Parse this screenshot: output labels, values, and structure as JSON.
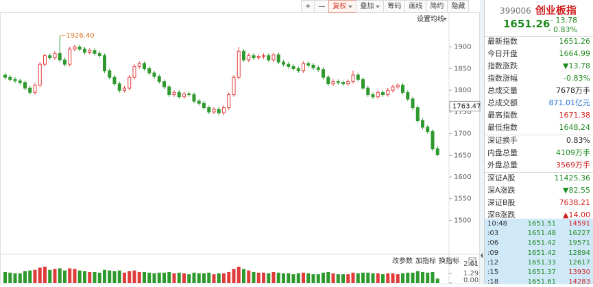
{
  "toolbar": {
    "buttons": [
      "+",
      "—",
      "复权",
      "叠加",
      "筹码",
      "画线",
      "简约",
      "隐藏"
    ],
    "dropdowns": [
      false,
      false,
      true,
      true,
      false,
      false,
      false,
      false
    ],
    "active": 2
  },
  "chart_data": {
    "type": "candlestick",
    "ohlc": [
      [
        1835,
        1840,
        1825,
        1830
      ],
      [
        1830,
        1835,
        1820,
        1825
      ],
      [
        1825,
        1830,
        1817,
        1822
      ],
      [
        1822,
        1827,
        1813,
        1818
      ],
      [
        1818,
        1823,
        1800,
        1805
      ],
      [
        1805,
        1810,
        1790,
        1795
      ],
      [
        1795,
        1817,
        1790,
        1812
      ],
      [
        1812,
        1865,
        1807,
        1860
      ],
      [
        1860,
        1885,
        1855,
        1880
      ],
      [
        1880,
        1885,
        1870,
        1875
      ],
      [
        1875,
        1890,
        1870,
        1885
      ],
      [
        1885,
        1926.4,
        1865,
        1870
      ],
      [
        1870,
        1875,
        1855,
        1860
      ],
      [
        1860,
        1900,
        1855,
        1895
      ],
      [
        1895,
        1905,
        1890,
        1900
      ],
      [
        1900,
        1905,
        1890,
        1895
      ],
      [
        1895,
        1900,
        1883,
        1888
      ],
      [
        1888,
        1897,
        1883,
        1892
      ],
      [
        1892,
        1897,
        1880,
        1885
      ],
      [
        1885,
        1890,
        1875,
        1880
      ],
      [
        1880,
        1885,
        1840,
        1845
      ],
      [
        1845,
        1850,
        1825,
        1830
      ],
      [
        1830,
        1835,
        1810,
        1815
      ],
      [
        1815,
        1820,
        1795,
        1800
      ],
      [
        1800,
        1810,
        1795,
        1805
      ],
      [
        1805,
        1835,
        1800,
        1830
      ],
      [
        1830,
        1860,
        1825,
        1855
      ],
      [
        1855,
        1867,
        1850,
        1862
      ],
      [
        1862,
        1867,
        1845,
        1850
      ],
      [
        1850,
        1855,
        1835,
        1840
      ],
      [
        1840,
        1845,
        1827,
        1832
      ],
      [
        1832,
        1837,
        1815,
        1820
      ],
      [
        1820,
        1825,
        1803,
        1808
      ],
      [
        1808,
        1813,
        1785,
        1790
      ],
      [
        1790,
        1800,
        1785,
        1795
      ],
      [
        1795,
        1800,
        1780,
        1785
      ],
      [
        1785,
        1797,
        1780,
        1792
      ],
      [
        1792,
        1797,
        1785,
        1790
      ],
      [
        1790,
        1795,
        1770,
        1775
      ],
      [
        1775,
        1780,
        1765,
        1770
      ],
      [
        1770,
        1775,
        1755,
        1760
      ],
      [
        1760,
        1765,
        1745,
        1750
      ],
      [
        1750,
        1761,
        1745,
        1756
      ],
      [
        1756,
        1761,
        1743,
        1748
      ],
      [
        1748,
        1765,
        1743,
        1760
      ],
      [
        1760,
        1795,
        1755,
        1790
      ],
      [
        1790,
        1835,
        1785,
        1830
      ],
      [
        1830,
        1900,
        1825,
        1890
      ],
      [
        1890,
        1895,
        1865,
        1870
      ],
      [
        1870,
        1885,
        1865,
        1880
      ],
      [
        1880,
        1885,
        1870,
        1875
      ],
      [
        1875,
        1883,
        1870,
        1878
      ],
      [
        1878,
        1885,
        1873,
        1880
      ],
      [
        1880,
        1885,
        1865,
        1870
      ],
      [
        1870,
        1887,
        1865,
        1882
      ],
      [
        1882,
        1887,
        1860,
        1865
      ],
      [
        1865,
        1870,
        1855,
        1860
      ],
      [
        1860,
        1865,
        1850,
        1855
      ],
      [
        1855,
        1860,
        1845,
        1850
      ],
      [
        1850,
        1855,
        1840,
        1845
      ],
      [
        1845,
        1867,
        1840,
        1862
      ],
      [
        1862,
        1867,
        1853,
        1858
      ],
      [
        1858,
        1863,
        1847,
        1852
      ],
      [
        1852,
        1857,
        1843,
        1848
      ],
      [
        1848,
        1853,
        1825,
        1830
      ],
      [
        1830,
        1835,
        1810,
        1815
      ],
      [
        1815,
        1825,
        1810,
        1820
      ],
      [
        1820,
        1825,
        1813,
        1818
      ],
      [
        1818,
        1823,
        1810,
        1815
      ],
      [
        1815,
        1825,
        1810,
        1820
      ],
      [
        1820,
        1845,
        1815,
        1835
      ],
      [
        1835,
        1840,
        1820,
        1825
      ],
      [
        1825,
        1830,
        1800,
        1805
      ],
      [
        1805,
        1810,
        1785,
        1790
      ],
      [
        1790,
        1795,
        1780,
        1785
      ],
      [
        1785,
        1800,
        1780,
        1795
      ],
      [
        1795,
        1800,
        1785,
        1790
      ],
      [
        1790,
        1805,
        1785,
        1800
      ],
      [
        1800,
        1813,
        1795,
        1808
      ],
      [
        1808,
        1817,
        1803,
        1812
      ],
      [
        1812,
        1817,
        1790,
        1795
      ],
      [
        1795,
        1800,
        1775,
        1780
      ],
      [
        1780,
        1785,
        1755,
        1760
      ],
      [
        1760,
        1765,
        1725,
        1730
      ],
      [
        1730,
        1735,
        1710,
        1715
      ],
      [
        1715,
        1720,
        1700,
        1705
      ],
      [
        1705,
        1710,
        1660,
        1665
      ],
      [
        1664.99,
        1671.38,
        1648.24,
        1651.26
      ]
    ],
    "volumes": [
      1.5,
      1.4,
      1.3,
      1.3,
      1.6,
      1.7,
      1.8,
      2.1,
      2.2,
      1.8,
      1.9,
      2.0,
      1.7,
      2.0,
      1.9,
      1.7,
      1.6,
      1.5,
      1.5,
      1.4,
      1.8,
      1.7,
      1.6,
      1.7,
      1.4,
      1.6,
      1.7,
      1.5,
      1.5,
      1.4,
      1.3,
      1.4,
      1.4,
      1.5,
      1.3,
      1.4,
      1.3,
      1.2,
      1.4,
      1.3,
      1.3,
      1.4,
      1.2,
      1.3,
      1.3,
      1.5,
      1.9,
      2.2,
      1.9,
      1.7,
      1.5,
      1.4,
      1.4,
      1.3,
      1.5,
      1.4,
      1.3,
      1.3,
      1.2,
      1.3,
      1.4,
      1.3,
      1.2,
      1.2,
      1.4,
      1.5,
      1.3,
      1.2,
      1.2,
      1.2,
      1.4,
      1.3,
      1.4,
      1.4,
      1.3,
      1.3,
      1.2,
      1.3,
      1.3,
      1.2,
      1.3,
      1.4,
      1.4,
      1.6,
      1.5,
      1.4,
      1.5,
      0.6
    ],
    "up_color": "#e03c3c",
    "down_color": "#2e9a2e",
    "ylim": [
      1425,
      1980
    ],
    "yticks": [
      1500,
      1550,
      1600,
      1650,
      1700,
      1750,
      1800,
      1850,
      1900
    ],
    "high": {
      "index": 11,
      "label": "1926.40"
    },
    "cursor": {
      "value": 1763.47,
      "label": "1763.47"
    },
    "ma_menu": "设置均线",
    "volume_ylim": [
      0,
      2.9
    ],
    "volume_yticks": [
      {
        "value": 0,
        "label": "0.00"
      },
      1.29,
      2.61
    ],
    "volume_tools": [
      "改参数",
      "加指标",
      "换指标"
    ]
  },
  "quote": {
    "code": "399006",
    "name": "创业板指",
    "price": "1651.26",
    "change": "- 13.78",
    "percent": "- 0.83%"
  },
  "stats": [
    [
      {
        "label": "最新指数",
        "value": "1651.26",
        "color": "down"
      },
      {
        "label": "今日开盘",
        "value": "1664.99",
        "color": "down"
      },
      {
        "label": "指数涨跌",
        "value": "▼13.78",
        "color": "down"
      },
      {
        "label": "指数涨幅",
        "value": "-0.83%",
        "color": "down"
      },
      {
        "label": "总成交量",
        "value": "7678万手",
        "color": "flat"
      },
      {
        "label": "总成交额",
        "value": "871.01亿元",
        "color": "blue"
      },
      {
        "label": "最高指数",
        "value": "1671.38",
        "color": "up"
      },
      {
        "label": "最低指数",
        "value": "1648.24",
        "color": "down"
      }
    ],
    [
      {
        "label": "深证换手",
        "value": "0.83%",
        "color": "flat"
      },
      {
        "label": "内盘总量",
        "value": "4109万手",
        "color": "down"
      },
      {
        "label": "外盘总量",
        "value": "3569万手",
        "color": "up"
      }
    ],
    [
      {
        "label": "深证A股",
        "value": "11425.36",
        "color": "down"
      },
      {
        "label": "深A涨跌",
        "value": "▼82.55",
        "color": "down"
      },
      {
        "label": "深证B股",
        "value": "7638.21",
        "color": "up"
      },
      {
        "label": "深B涨跌",
        "value": "▲14.00",
        "color": "up"
      }
    ]
  ],
  "ticks": [
    {
      "time": "10:48",
      "price": "1651.51",
      "volume": "14591",
      "color": "up"
    },
    {
      "time": ":03",
      "price": "1651.48",
      "volume": "16227",
      "color": "down"
    },
    {
      "time": ":06",
      "price": "1651.42",
      "volume": "19571",
      "color": "down"
    },
    {
      "time": ":09",
      "price": "1651.42",
      "volume": "12894",
      "color": "down"
    },
    {
      "time": ":12",
      "price": "1651.33",
      "volume": "12617",
      "color": "down"
    },
    {
      "time": ":15",
      "price": "1651.37",
      "volume": "13930",
      "color": "up"
    },
    {
      "time": ":18",
      "price": "1651.61",
      "volume": "14283",
      "color": "up"
    }
  ]
}
